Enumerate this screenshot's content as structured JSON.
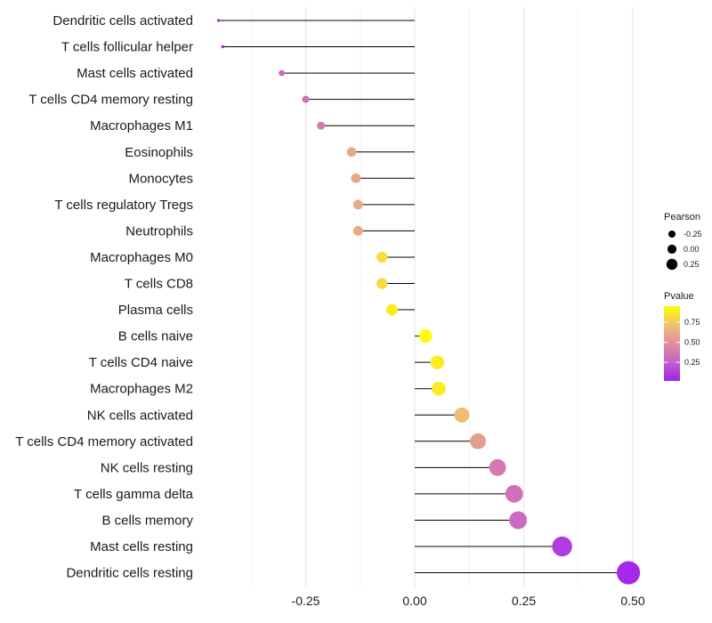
{
  "chart_data": {
    "type": "lollipop",
    "title": "",
    "xlabel": "",
    "ylabel": "",
    "xlim": [
      -0.45,
      0.52
    ],
    "x_ticks": [
      -0.25,
      0.0,
      0.25,
      0.5
    ],
    "x_tick_labels": [
      "-0.25",
      "0.00",
      "0.25",
      "0.50"
    ],
    "grid": true,
    "colors": {
      "low": "#a020f0",
      "mid": "#e8a27a",
      "high": "#ffff00",
      "stem": "#000000",
      "grid": "#ebebeb"
    },
    "categories": [
      "Dendritic cells activated",
      "T cells follicular helper",
      "Mast cells activated",
      "T cells CD4 memory resting",
      "Macrophages M1",
      "Eosinophils",
      "Monocytes",
      "T cells regulatory  Tregs ",
      "Neutrophils",
      "Macrophages M0",
      "T cells CD8",
      "Plasma cells",
      "B cells naive",
      "T cells CD4 naive",
      "Macrophages M2",
      "NK cells activated",
      "T cells CD4 memory activated",
      "NK cells resting",
      "T cells gamma delta",
      "B cells memory",
      "Mast cells resting",
      "Dendritic cells resting"
    ],
    "values": [
      -0.45,
      -0.44,
      -0.305,
      -0.25,
      -0.215,
      -0.145,
      -0.135,
      -0.13,
      -0.13,
      -0.075,
      -0.075,
      -0.052,
      0.025,
      0.052,
      0.055,
      0.108,
      0.145,
      0.19,
      0.228,
      0.237,
      0.338,
      0.49
    ],
    "pvalues": [
      0.03,
      0.03,
      0.28,
      0.33,
      0.38,
      0.6,
      0.6,
      0.62,
      0.62,
      0.82,
      0.82,
      0.88,
      0.93,
      0.88,
      0.88,
      0.7,
      0.55,
      0.38,
      0.33,
      0.3,
      0.12,
      0.05
    ],
    "legend": {
      "position": "right",
      "size_title": "Pearson",
      "size_labels": [
        "-0.25",
        "0.00",
        "0.25"
      ],
      "size_values": [
        -0.25,
        0.0,
        0.25
      ],
      "color_title": "Pvalue",
      "color_labels": [
        "0.75",
        "0.50",
        "0.25"
      ],
      "color_values": [
        0.75,
        0.5,
        0.25
      ],
      "color_range": [
        0.02,
        0.95
      ]
    }
  }
}
